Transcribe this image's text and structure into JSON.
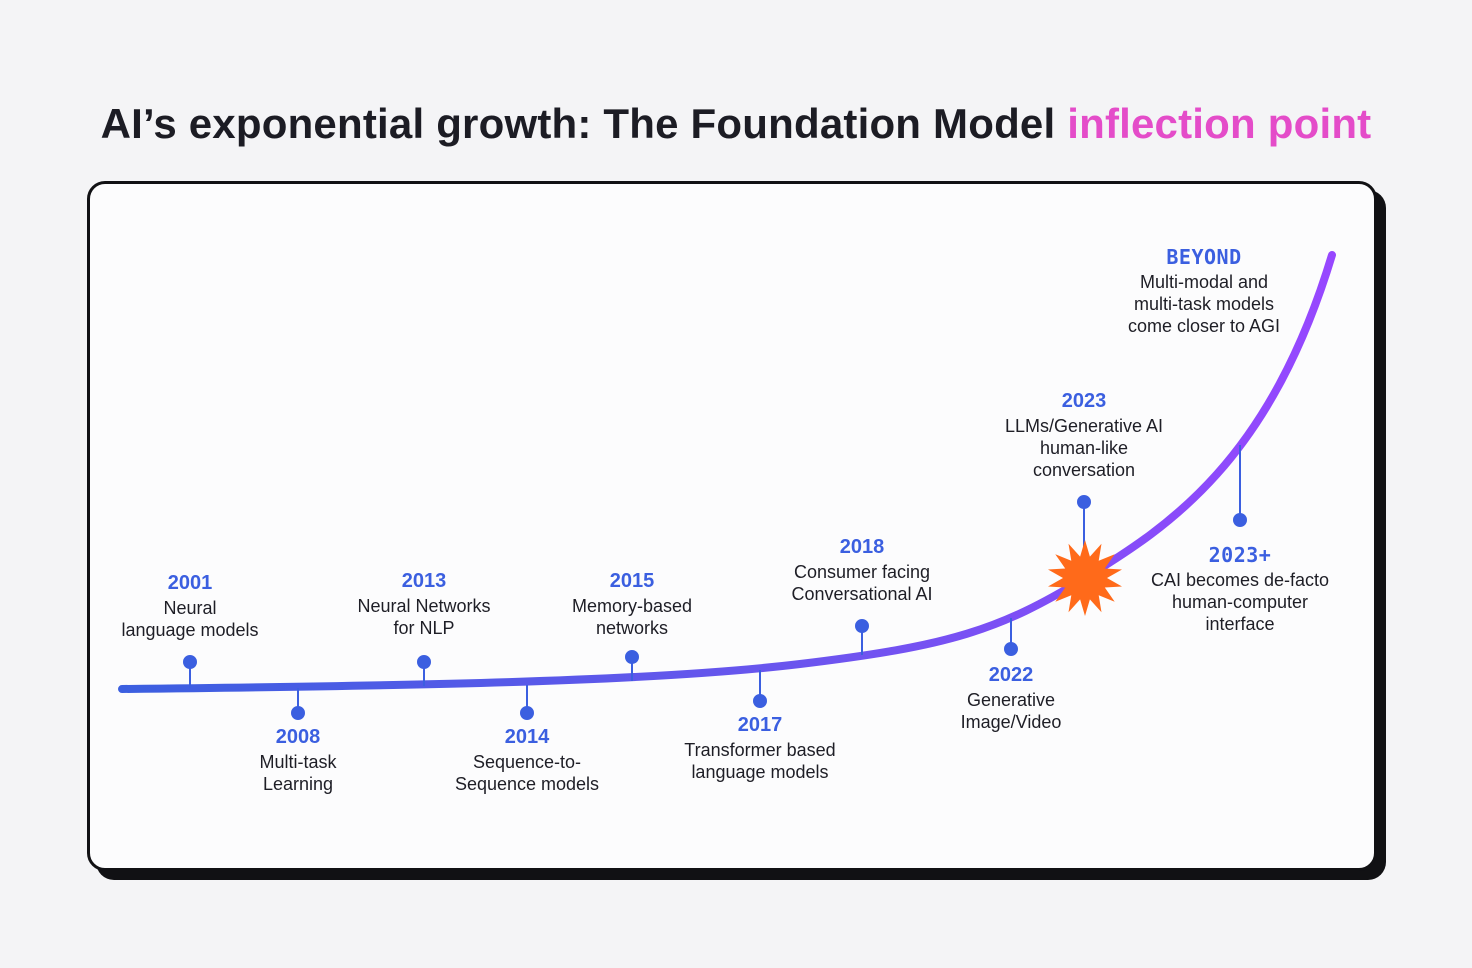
{
  "title": {
    "prefix": "AI’s exponential growth: The Foundation Model ",
    "highlight": "inflection point"
  },
  "colors": {
    "year": "#3b5fe0",
    "highlight": "#e44cc9",
    "curve_start": "#3b5fe0",
    "curve_end": "#9747ff",
    "burst": "#ff6a1a"
  },
  "milestones": [
    {
      "id": "2001",
      "year": "2001",
      "lines": [
        "Neural",
        "language models"
      ]
    },
    {
      "id": "2008",
      "year": "2008",
      "lines": [
        "Multi-task",
        "Learning"
      ]
    },
    {
      "id": "2013",
      "year": "2013",
      "lines": [
        "Neural Networks",
        "for NLP"
      ]
    },
    {
      "id": "2014",
      "year": "2014",
      "lines": [
        "Sequence-to-",
        "Sequence models"
      ]
    },
    {
      "id": "2015",
      "year": "2015",
      "lines": [
        "Memory-based",
        "networks"
      ]
    },
    {
      "id": "2017",
      "year": "2017",
      "lines": [
        "Transformer based",
        "language models"
      ]
    },
    {
      "id": "2018",
      "year": "2018",
      "lines": [
        "Consumer facing",
        "Conversational AI"
      ]
    },
    {
      "id": "2022",
      "year": "2022",
      "lines": [
        "Generative",
        "Image/Video"
      ]
    },
    {
      "id": "2023",
      "year": "2023",
      "lines": [
        "LLMs/Generative AI",
        "human-like",
        "conversation"
      ]
    },
    {
      "id": "2023plus",
      "year": "2023+",
      "lines": [
        "CAI becomes de-facto",
        "human-computer",
        "interface"
      ]
    },
    {
      "id": "beyond",
      "year": "BEYOND",
      "lines": [
        "Multi-modal and",
        "multi-task models",
        "come closer to AGI"
      ]
    }
  ]
}
